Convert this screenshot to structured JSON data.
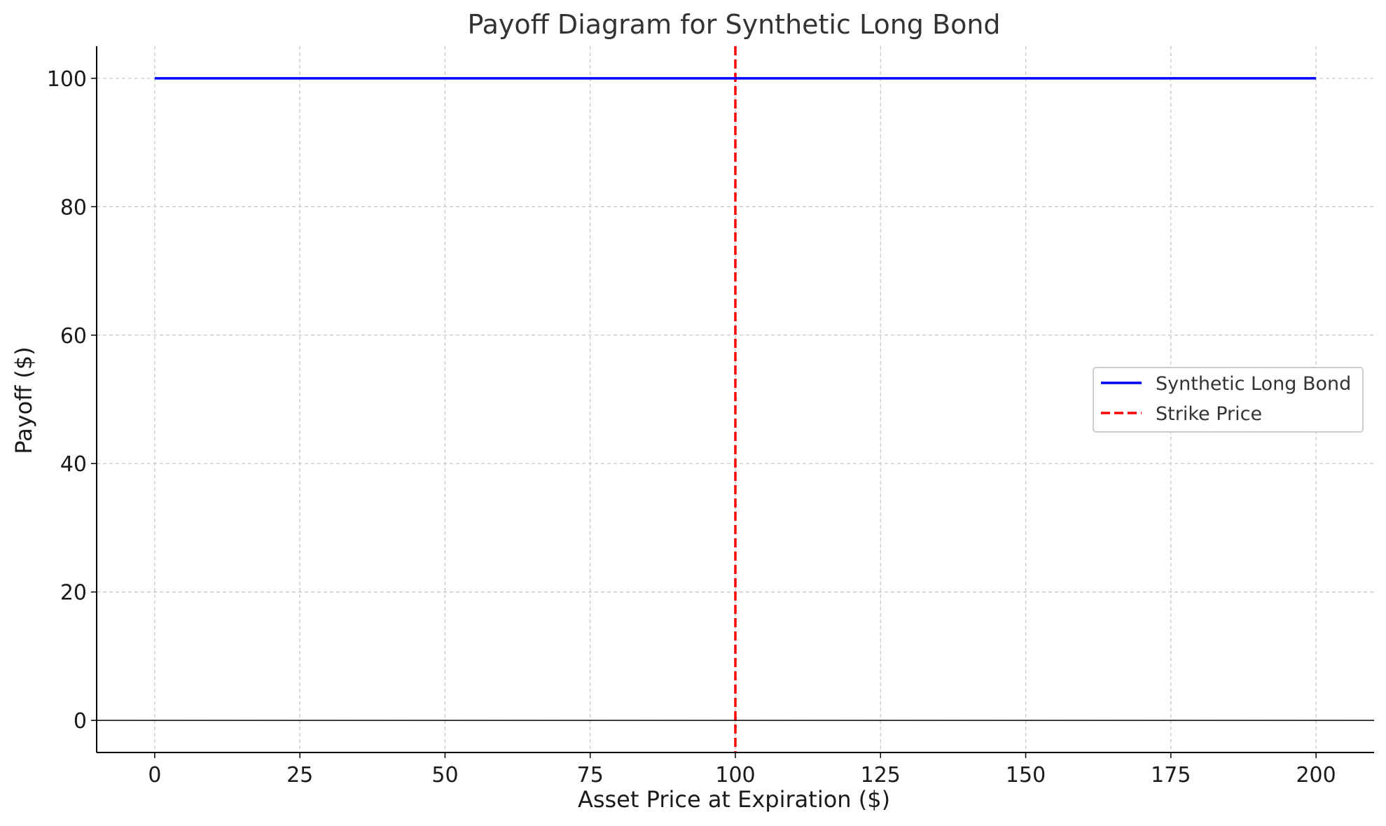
{
  "chart_data": {
    "type": "line",
    "title": "Payoff Diagram for Synthetic Long Bond",
    "xlabel": "Asset Price at Expiration ($)",
    "ylabel": "Payoff ($)",
    "xlim": [
      -10,
      210
    ],
    "ylim": [
      -5,
      105
    ],
    "x_ticks": [
      0,
      25,
      50,
      75,
      100,
      125,
      150,
      175,
      200
    ],
    "y_ticks": [
      0,
      20,
      40,
      60,
      80,
      100
    ],
    "grid": true,
    "legend_position": "center-right",
    "series": [
      {
        "name": "Synthetic Long Bond",
        "style": "solid",
        "color": "#0000ff",
        "x": [
          0,
          200
        ],
        "y": [
          100,
          100
        ]
      }
    ],
    "reference_lines": [
      {
        "name": "Strike Price",
        "orientation": "vertical",
        "value": 100,
        "style": "dashed",
        "color": "#ff0000"
      },
      {
        "name": "",
        "orientation": "horizontal",
        "value": 0,
        "style": "solid",
        "color": "#000000"
      }
    ]
  }
}
